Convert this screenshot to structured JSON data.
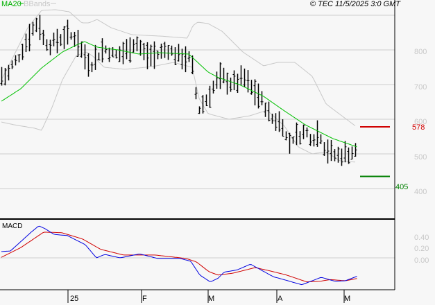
{
  "legend": {
    "ma_label": "MA20",
    "bb_label": "BBands",
    "ma_color": "#00c000",
    "bb_color": "#c8c8c8"
  },
  "copyright": "© TEC 11/5/2025 3:0 GMT",
  "price_axis": [
    "800",
    "700",
    "600",
    "500",
    "400"
  ],
  "price_axis_values": [
    800,
    700,
    600,
    500,
    400
  ],
  "macd_axis": [
    "0.40",
    "0.20",
    "0.00"
  ],
  "macd_axis_values": [
    0.4,
    0.2,
    0.0
  ],
  "macd_label": "MACD",
  "x_ticks": [
    {
      "label": "25",
      "day": 19.2
    },
    {
      "label": "F",
      "day": 40.4
    },
    {
      "label": "M",
      "day": 59.6
    },
    {
      "label": "A",
      "day": 79.4
    },
    {
      "label": "M",
      "day": 98.8
    }
  ],
  "levels": [
    {
      "label": "578",
      "value": 578,
      "color": "#d00000"
    },
    {
      "label": "405",
      "value": 405,
      "color": "#008000"
    }
  ],
  "chart_data": {
    "type": "line",
    "price_anchors": [
      [
        0,
        724
      ],
      [
        1.6,
        724
      ],
      [
        3,
        754
      ],
      [
        4.6,
        774
      ],
      [
        6.6,
        814
      ],
      [
        8.6,
        854
      ],
      [
        10.6,
        884
      ],
      [
        12,
        834
      ],
      [
        13.6,
        814
      ],
      [
        15.6,
        824
      ],
      [
        18.6,
        844
      ],
      [
        21.6,
        834
      ],
      [
        23.2,
        794
      ],
      [
        25.6,
        754
      ],
      [
        27.6,
        784
      ],
      [
        29.6,
        804
      ],
      [
        32.6,
        784
      ],
      [
        35.6,
        794
      ],
      [
        38.6,
        824
      ],
      [
        41.6,
        784
      ],
      [
        44.6,
        784
      ],
      [
        47.6,
        804
      ],
      [
        50.6,
        784
      ],
      [
        54,
        774
      ],
      [
        55.2,
        744
      ],
      [
        56.6,
        624
      ],
      [
        58,
        644
      ],
      [
        59.6,
        664
      ],
      [
        61.6,
        704
      ],
      [
        63.6,
        724
      ],
      [
        65.6,
        704
      ],
      [
        67.6,
        704
      ],
      [
        69.6,
        724
      ],
      [
        71.6,
        694
      ],
      [
        73.6,
        674
      ],
      [
        75.6,
        644
      ],
      [
        77.6,
        604
      ],
      [
        79.6,
        594
      ],
      [
        81.2,
        584
      ],
      [
        82.6,
        524
      ],
      [
        83.6,
        544
      ],
      [
        85.6,
        554
      ],
      [
        87.6,
        564
      ],
      [
        89.6,
        544
      ],
      [
        91.6,
        564
      ],
      [
        92.8,
        524
      ],
      [
        94.6,
        504
      ],
      [
        96.6,
        494
      ],
      [
        98.6,
        500
      ],
      [
        100.6,
        504
      ],
      [
        102.4,
        508
      ]
    ],
    "ma20": [
      [
        0,
        652
      ],
      [
        5.6,
        688
      ],
      [
        11.6,
        748
      ],
      [
        17.6,
        794
      ],
      [
        21.6,
        814
      ],
      [
        24,
        824
      ],
      [
        27.6,
        808
      ],
      [
        33.6,
        800
      ],
      [
        39.6,
        788
      ],
      [
        45.6,
        792
      ],
      [
        54,
        788
      ],
      [
        56.6,
        764
      ],
      [
        59.6,
        736
      ],
      [
        62.6,
        720
      ],
      [
        68.6,
        700
      ],
      [
        75.6,
        666
      ],
      [
        81.6,
        624
      ],
      [
        87.6,
        584
      ],
      [
        95.6,
        544
      ],
      [
        102.6,
        520
      ]
    ],
    "bb_upper": [
      [
        0,
        714
      ],
      [
        2.6,
        764
      ],
      [
        7.6,
        864
      ],
      [
        11.6,
        914
      ],
      [
        15.6,
        916
      ],
      [
        19.6,
        910
      ],
      [
        23.2,
        878
      ],
      [
        25.2,
        878
      ],
      [
        27.6,
        888
      ],
      [
        31.6,
        864
      ],
      [
        37.6,
        844
      ],
      [
        45.6,
        840
      ],
      [
        53.6,
        834
      ],
      [
        55.2,
        870
      ],
      [
        56.6,
        880
      ],
      [
        59.6,
        876
      ],
      [
        63.6,
        854
      ],
      [
        69.6,
        794
      ],
      [
        75.6,
        754
      ],
      [
        79.6,
        764
      ],
      [
        84.6,
        764
      ],
      [
        89.6,
        724
      ],
      [
        93.6,
        644
      ],
      [
        97.6,
        614
      ],
      [
        102.4,
        578
      ]
    ],
    "bb_lower": [
      [
        0,
        592
      ],
      [
        3.6,
        584
      ],
      [
        9.6,
        574
      ],
      [
        11.6,
        568
      ],
      [
        14.6,
        634
      ],
      [
        17.6,
        714
      ],
      [
        21.6,
        784
      ],
      [
        24.6,
        794
      ],
      [
        26.6,
        780
      ],
      [
        29.6,
        750
      ],
      [
        35.6,
        744
      ],
      [
        43.6,
        752
      ],
      [
        49.6,
        764
      ],
      [
        55,
        750
      ],
      [
        57,
        660
      ],
      [
        59.6,
        616
      ],
      [
        65.6,
        600
      ],
      [
        71.6,
        610
      ],
      [
        76.6,
        626
      ],
      [
        81.6,
        580
      ],
      [
        85.6,
        520
      ],
      [
        89.6,
        500
      ],
      [
        93.6,
        506
      ],
      [
        97.6,
        480
      ],
      [
        102.4,
        476
      ]
    ],
    "macd": [
      [
        0,
        0.11
      ],
      [
        2.6,
        0.12
      ],
      [
        8.6,
        0.45
      ],
      [
        10.8,
        0.56
      ],
      [
        12.6,
        0.51
      ],
      [
        15.2,
        0.41
      ],
      [
        19,
        0.39
      ],
      [
        24.2,
        0.23
      ],
      [
        27.4,
        0
      ],
      [
        29.8,
        0.06
      ],
      [
        34.2,
        0
      ],
      [
        39.8,
        0.07
      ],
      [
        45,
        -0.01
      ],
      [
        51.6,
        -0.01
      ],
      [
        54.6,
        -0.06
      ],
      [
        57.2,
        -0.3
      ],
      [
        60.2,
        -0.42
      ],
      [
        62.4,
        -0.36
      ],
      [
        64.2,
        -0.25
      ],
      [
        68,
        -0.21
      ],
      [
        71.8,
        -0.11
      ],
      [
        78.4,
        -0.33
      ],
      [
        81.4,
        -0.38
      ],
      [
        86.6,
        -0.47
      ],
      [
        92.2,
        -0.34
      ],
      [
        96.2,
        -0.41
      ],
      [
        99.2,
        -0.4
      ],
      [
        102.6,
        -0.32
      ]
    ],
    "signal": [
      [
        0,
        0.01
      ],
      [
        5.6,
        0.18
      ],
      [
        12.2,
        0.45
      ],
      [
        17.4,
        0.44
      ],
      [
        23.4,
        0.33
      ],
      [
        28.6,
        0.15
      ],
      [
        35.2,
        0.05
      ],
      [
        44.2,
        0.05
      ],
      [
        53.2,
        -0.01
      ],
      [
        56.2,
        -0.07
      ],
      [
        59.8,
        -0.24
      ],
      [
        62.4,
        -0.3
      ],
      [
        66.6,
        -0.27
      ],
      [
        73.2,
        -0.17
      ],
      [
        77.6,
        -0.23
      ],
      [
        82.2,
        -0.3
      ],
      [
        88,
        -0.42
      ],
      [
        91.8,
        -0.41
      ],
      [
        94.8,
        -0.38
      ],
      [
        99.2,
        -0.4
      ],
      [
        102.6,
        -0.36
      ]
    ],
    "ylim": [
      350,
      950
    ],
    "macd_ylim": [
      -0.55,
      0.65
    ]
  }
}
